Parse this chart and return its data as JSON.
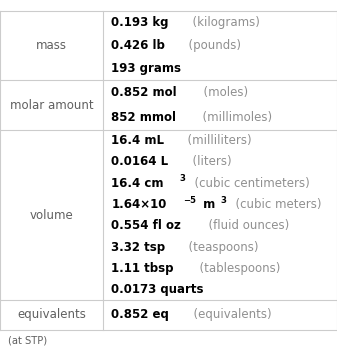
{
  "rows": [
    {
      "label": "mass",
      "entries": [
        [
          {
            "text": "0.193 kg",
            "bold": true,
            "super": false
          },
          {
            "text": "  (kilograms)",
            "bold": false,
            "super": false
          }
        ],
        [
          {
            "text": "0.426 lb",
            "bold": true,
            "super": false
          },
          {
            "text": "  (pounds)",
            "bold": false,
            "super": false
          }
        ],
        [
          {
            "text": "193 grams",
            "bold": true,
            "super": false
          }
        ]
      ]
    },
    {
      "label": "molar amount",
      "entries": [
        [
          {
            "text": "0.852 mol",
            "bold": true,
            "super": false
          },
          {
            "text": "  (moles)",
            "bold": false,
            "super": false
          }
        ],
        [
          {
            "text": "852 mmol",
            "bold": true,
            "super": false
          },
          {
            "text": "  (millimoles)",
            "bold": false,
            "super": false
          }
        ]
      ]
    },
    {
      "label": "volume",
      "entries": [
        [
          {
            "text": "16.4 mL",
            "bold": true,
            "super": false
          },
          {
            "text": "  (milliliters)",
            "bold": false,
            "super": false
          }
        ],
        [
          {
            "text": "0.0164 L",
            "bold": true,
            "super": false
          },
          {
            "text": "  (liters)",
            "bold": false,
            "super": false
          }
        ],
        [
          {
            "text": "16.4 cm",
            "bold": true,
            "super": false
          },
          {
            "text": "3",
            "bold": true,
            "super": true
          },
          {
            "text": "  (cubic centimeters)",
            "bold": false,
            "super": false
          }
        ],
        [
          {
            "text": "1.64×10",
            "bold": true,
            "super": false
          },
          {
            "text": "−5",
            "bold": true,
            "super": true
          },
          {
            "text": " m",
            "bold": true,
            "super": false
          },
          {
            "text": "3",
            "bold": true,
            "super": true
          },
          {
            "text": "  (cubic meters)",
            "bold": false,
            "super": false
          }
        ],
        [
          {
            "text": "0.554 fl oz",
            "bold": true,
            "super": false
          },
          {
            "text": "  (fluid ounces)",
            "bold": false,
            "super": false
          }
        ],
        [
          {
            "text": "3.32 tsp",
            "bold": true,
            "super": false
          },
          {
            "text": "  (teaspoons)",
            "bold": false,
            "super": false
          }
        ],
        [
          {
            "text": "1.11 tbsp",
            "bold": true,
            "super": false
          },
          {
            "text": "  (tablespoons)",
            "bold": false,
            "super": false
          }
        ],
        [
          {
            "text": "0.0173 quarts",
            "bold": true,
            "super": false
          }
        ]
      ]
    },
    {
      "label": "equivalents",
      "entries": [
        [
          {
            "text": "0.852 eq",
            "bold": true,
            "super": false
          },
          {
            "text": "  (equivalents)",
            "bold": false,
            "super": false
          }
        ]
      ]
    }
  ],
  "footer": "(at STP)",
  "label_color": "#606060",
  "value_color": "#000000",
  "unit_color": "#909090",
  "bg_color": "#ffffff",
  "line_color": "#cccccc",
  "col_split": 0.305,
  "font_size": 8.5,
  "label_font_size": 8.5
}
